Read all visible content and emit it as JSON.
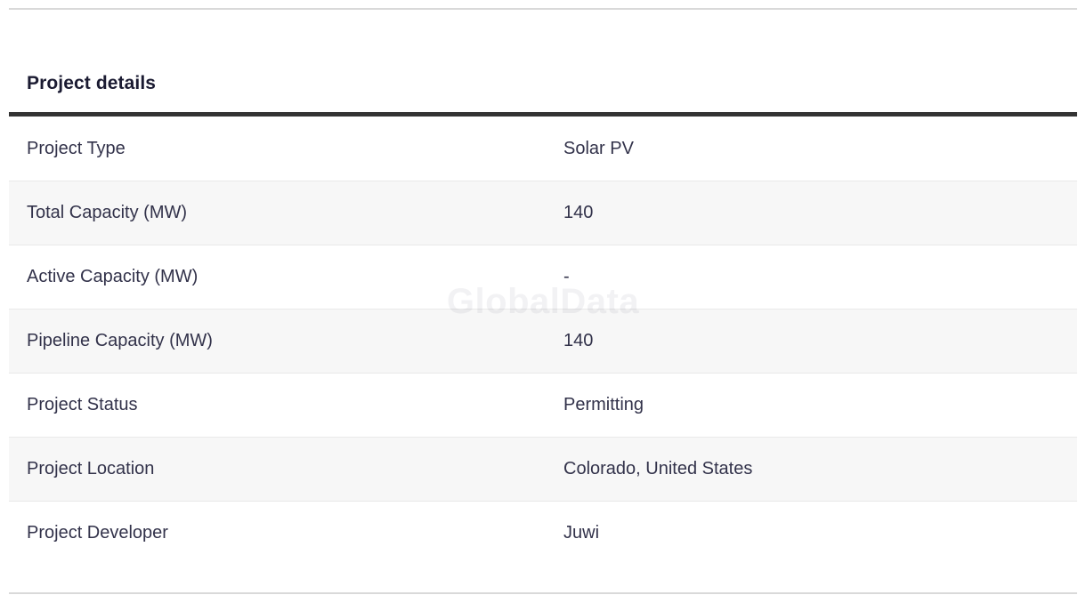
{
  "header": {
    "title": "Project details"
  },
  "watermark": {
    "text": "GlobalData"
  },
  "table": {
    "rows": [
      {
        "label": "Project Type",
        "value": "Solar PV"
      },
      {
        "label": "Total Capacity (MW)",
        "value": "140"
      },
      {
        "label": "Active Capacity (MW)",
        "value": "-"
      },
      {
        "label": "Pipeline Capacity (MW)",
        "value": "140"
      },
      {
        "label": "Project Status",
        "value": "Permitting"
      },
      {
        "label": "Project Location",
        "value": "Colorado, United States"
      },
      {
        "label": "Project Developer",
        "value": "Juwi"
      }
    ]
  },
  "colors": {
    "heading_text": "#1b1b32",
    "body_text": "#32324a",
    "thick_rule": "#333333",
    "row_alt_background": "#f7f7f7",
    "row_border": "#e9e9e9",
    "page_divider": "#d9d9d9",
    "watermark_text": "rgba(35,35,60,0.06)"
  }
}
